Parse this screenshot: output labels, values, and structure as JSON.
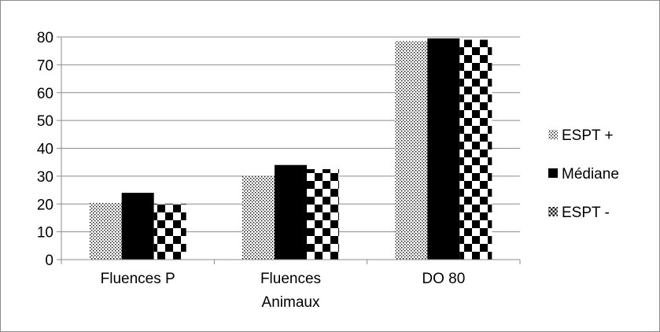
{
  "chart_data": {
    "type": "bar",
    "categories": [
      "Fluences P",
      "Fluences Animaux",
      "DO 80"
    ],
    "category_label_lines": [
      [
        "Fluences P"
      ],
      [
        "Fluences",
        "Animaux"
      ],
      [
        "DO 80"
      ]
    ],
    "series": [
      {
        "name": "ESPT +",
        "values": [
          20.5,
          30,
          78.5
        ],
        "pattern": "dotted"
      },
      {
        "name": "Médiane",
        "values": [
          24,
          34,
          79.5
        ],
        "pattern": "solid"
      },
      {
        "name": "ESPT -",
        "values": [
          20,
          32.5,
          79
        ],
        "pattern": "checker"
      }
    ],
    "y_ticks": [
      "0",
      "10",
      "20",
      "30",
      "40",
      "50",
      "60",
      "70",
      "80"
    ],
    "ylim": [
      0,
      80
    ],
    "title": "",
    "xlabel": "",
    "ylabel": "",
    "grid": true,
    "legend_position": "right",
    "colors": {
      "ink": "#000000",
      "grid": "#8c8c8c",
      "paper": "#ffffff"
    }
  }
}
